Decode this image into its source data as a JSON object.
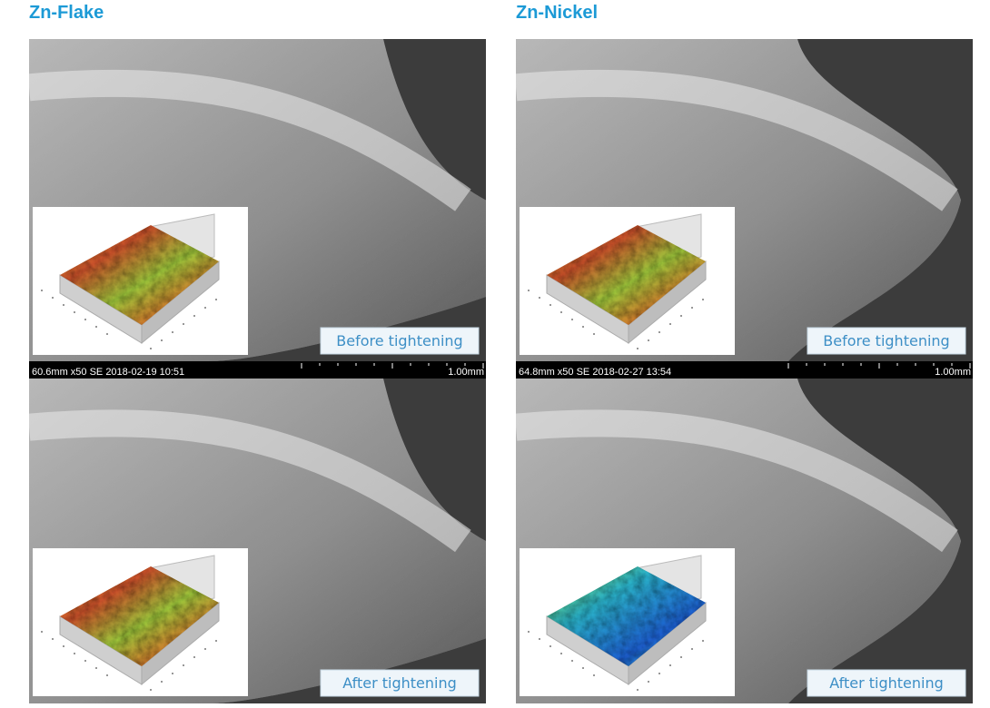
{
  "panels": [
    {
      "title": "Zn-Flake",
      "scale_bar": {
        "info": "60.6mm x50 SE 2018-02-19 10:51",
        "scale": "1.00mm"
      },
      "images": [
        {
          "label": "Before tightening"
        },
        {
          "label": "After tightening"
        }
      ]
    },
    {
      "title": "Zn-Nickel",
      "scale_bar": {
        "info": "64.8mm x50 SE 2018-02-27 13:54",
        "scale": "1.00mm"
      },
      "images": [
        {
          "label": "Before tightening"
        },
        {
          "label": "After tightening"
        }
      ]
    }
  ]
}
